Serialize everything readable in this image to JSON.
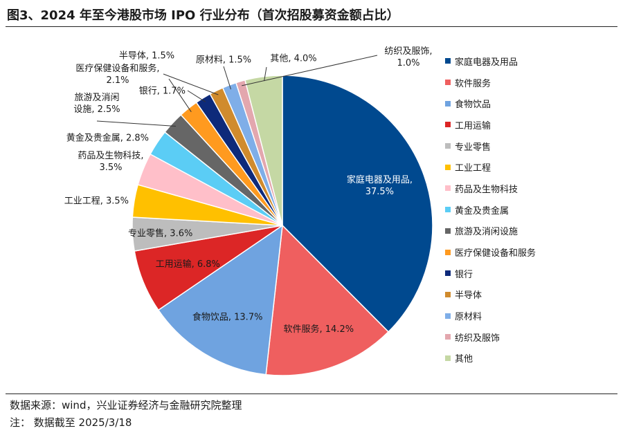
{
  "header": {
    "title": "图3、2024 年至今港股市场 IPO 行业分布（首次招股募资金额占比）"
  },
  "footer": {
    "source": "数据来源：wind，兴业证券经济与金融研究院整理",
    "note": "注：  数据截至 2025/3/18"
  },
  "chart_data": {
    "type": "pie",
    "title": "",
    "start_angle": "12 o'clock",
    "direction": "clockwise",
    "legend_position": "right",
    "slices": [
      {
        "name": "家庭电器及用品",
        "value": 37.5,
        "color": "#00498f",
        "label": "家庭电器及用品,\n37.5%"
      },
      {
        "name": "软件服务",
        "value": 14.2,
        "color": "#ef5f5f",
        "label": "软件服务, 14.2%"
      },
      {
        "name": "食物饮品",
        "value": 13.7,
        "color": "#6fa3e0",
        "label": "食物饮品, 13.7%"
      },
      {
        "name": "工用运输",
        "value": 6.8,
        "color": "#dc2626",
        "label": "工用运输, 6.8%"
      },
      {
        "name": "专业零售",
        "value": 3.6,
        "color": "#bdbdbd",
        "label": "专业零售, 3.6%"
      },
      {
        "name": "工业工程",
        "value": 3.5,
        "color": "#ffc000",
        "label": "工业工程, 3.5%"
      },
      {
        "name": "药品及生物科技",
        "value": 3.5,
        "color": "#ffbfc9",
        "label": "药品及生物科技,\n3.5%"
      },
      {
        "name": "黄金及贵金属",
        "value": 2.8,
        "color": "#5bcdf5",
        "label": "黄金及贵金属, 2.8%"
      },
      {
        "name": "旅游及消闲设施",
        "value": 2.5,
        "color": "#666666",
        "label": "旅游及消闲\n设施, 2.5%"
      },
      {
        "name": "医疗保健设备和服务",
        "value": 2.1,
        "color": "#ff9a1f",
        "label": "医疗保健设备和服务,\n2.1%"
      },
      {
        "name": "银行",
        "value": 1.7,
        "color": "#0e2a7a",
        "label": "银行, 1.7%"
      },
      {
        "name": "半导体",
        "value": 1.5,
        "color": "#d08b2d",
        "label": "半导体, 1.5%"
      },
      {
        "name": "原材料",
        "value": 1.5,
        "color": "#7faee8",
        "label": "原材料, 1.5%"
      },
      {
        "name": "纺织及服饰",
        "value": 1.0,
        "color": "#e3a7ae",
        "label": "纺织及服饰,\n1.0%"
      },
      {
        "name": "其他",
        "value": 4.0,
        "color": "#c5d8a4",
        "label": "其他, 4.0%"
      }
    ]
  }
}
